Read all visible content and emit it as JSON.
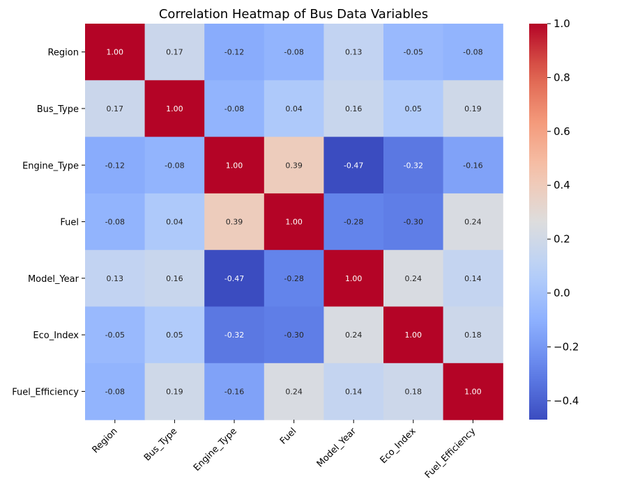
{
  "chart_data": {
    "type": "heatmap",
    "title": "Correlation Heatmap of Bus Data Variables",
    "variables": [
      "Region",
      "Bus_Type",
      "Engine_Type",
      "Fuel",
      "Model_Year",
      "Eco_Index",
      "Fuel_Efficiency"
    ],
    "matrix": [
      [
        1.0,
        0.17,
        -0.12,
        -0.08,
        0.13,
        -0.05,
        -0.08
      ],
      [
        0.17,
        1.0,
        -0.08,
        0.04,
        0.16,
        0.05,
        0.19
      ],
      [
        -0.12,
        -0.08,
        1.0,
        0.39,
        -0.47,
        -0.32,
        -0.16
      ],
      [
        -0.08,
        0.04,
        0.39,
        1.0,
        -0.28,
        -0.3,
        0.24
      ],
      [
        0.13,
        0.16,
        -0.47,
        -0.28,
        1.0,
        0.24,
        0.14
      ],
      [
        -0.05,
        0.05,
        -0.32,
        -0.3,
        0.24,
        1.0,
        0.18
      ],
      [
        -0.08,
        0.19,
        -0.16,
        0.24,
        0.14,
        0.18,
        1.0
      ]
    ],
    "colormap": "coolwarm",
    "vmin": -0.47,
    "vmax": 1.0,
    "colorbar_ticks": [
      1.0,
      0.8,
      0.6,
      0.4,
      0.2,
      0.0,
      -0.2,
      -0.4
    ],
    "colorbar_tick_labels": [
      "1.0",
      "0.8",
      "0.6",
      "0.4",
      "0.2",
      "0.0",
      "−0.2",
      "−0.4"
    ],
    "annotation_format": "0.00"
  }
}
